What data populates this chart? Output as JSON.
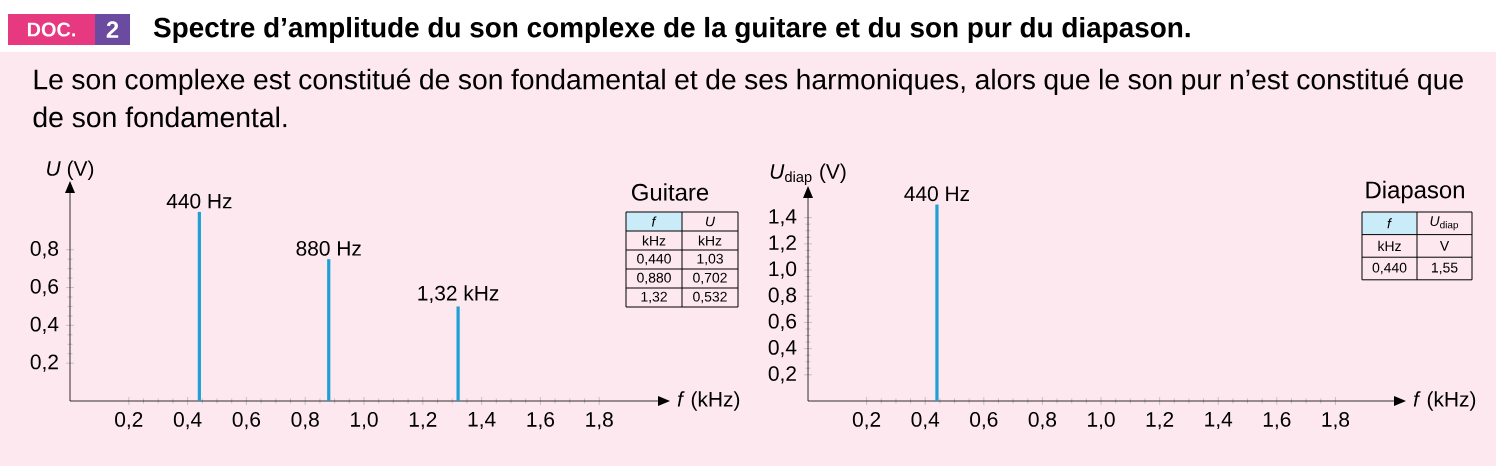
{
  "chart_data": [
    {
      "type": "bar",
      "title": "Spectre d’amplitude du son complexe de la guitare et du son pur du diapason.",
      "subtitle": "Le son complexe est constitué de son fondamental et de ses harmoniques, alors que le son pur n’est constitué que de son fondamental.",
      "xlabel": "*f* (kHz)",
      "ylabel": "*U* (V)",
      "x": [
        0.44,
        0.88,
        1.32
      ],
      "values": [
        1.0,
        0.75,
        0.5
      ],
      "color": "#1ea0d6",
      "xlim": [
        0,
        2.0
      ],
      "ylim": [
        0,
        1.1
      ],
      "xticks": [
        {
          "value": 0.2,
          "label": "0,2"
        },
        {
          "value": 0.4,
          "label": "0,4"
        },
        {
          "value": 0.6,
          "label": "0,6"
        },
        {
          "value": 0.8,
          "label": "0,8"
        },
        {
          "value": 1.0,
          "label": "1,0"
        },
        {
          "value": 1.2,
          "label": "1,2"
        },
        {
          "value": 1.4,
          "label": "1,4"
        },
        {
          "value": 1.6,
          "label": "1,6"
        },
        {
          "value": 1.8,
          "label": "1,8"
        }
      ],
      "yticks": [
        {
          "value": 0.2,
          "label": "0,2"
        },
        {
          "value": 0.4,
          "label": "0,4"
        },
        {
          "value": 0.6,
          "label": "0,6"
        },
        {
          "value": 0.8,
          "label": "0,8"
        }
      ],
      "annotations": [
        "DOC.",
        "2",
        "Guitare",
        "*f*",
        "*U*",
        "kHz",
        "kHz",
        "0,440",
        "1,03",
        "0,880",
        "0,702",
        "1,32",
        "0,532",
        {
          "text": "440 Hz",
          "x": 0.44,
          "y": 1.0
        },
        {
          "text": "880 Hz",
          "x": 0.88,
          "y": 0.75
        },
        {
          "text": "1,32 kHz",
          "x": 1.32,
          "y": 0.5
        }
      ]
    },
    {
      "type": "bar",
      "xlabel": "*f* (kHz)",
      "ylabel": "*U*$_{diap}$ (V)",
      "x": [
        0.44
      ],
      "values": [
        1.5
      ],
      "color": "#1ea0d6",
      "xlim": [
        0,
        2.0
      ],
      "ylim": [
        0,
        1.55
      ],
      "xticks": [
        {
          "value": 0.2,
          "label": "0,2"
        },
        {
          "value": 0.4,
          "label": "0,4"
        },
        {
          "value": 0.6,
          "label": "0,6"
        },
        {
          "value": 0.8,
          "label": "0,8"
        },
        {
          "value": 1.0,
          "label": "1,0"
        },
        {
          "value": 1.2,
          "label": "1,2"
        },
        {
          "value": 1.4,
          "label": "1,4"
        },
        {
          "value": 1.6,
          "label": "1,6"
        },
        {
          "value": 1.8,
          "label": "1,8"
        }
      ],
      "yticks": [
        {
          "value": 0.2,
          "label": "0,2"
        },
        {
          "value": 0.4,
          "label": "0,4"
        },
        {
          "value": 0.6,
          "label": "0,6"
        },
        {
          "value": 0.8,
          "label": "0,8"
        },
        {
          "value": 1.0,
          "label": "1,0"
        },
        {
          "value": 1.2,
          "label": "1,2"
        },
        {
          "value": 1.4,
          "label": "1,4"
        }
      ],
      "annotations": [
        "Diapason",
        "*f*",
        "*U*$_{diap}$",
        "kHz",
        "V",
        "0,440",
        "1,55",
        {
          "text": "440 Hz",
          "x": 0.44,
          "y": 1.5
        }
      ]
    }
  ]
}
